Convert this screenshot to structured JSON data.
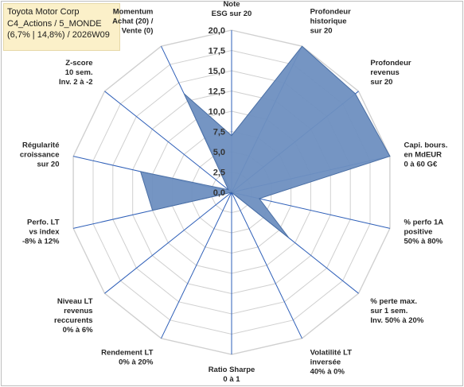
{
  "title_box": {
    "line1": "Toyota Motor Corp",
    "line2": "C4_Actions / 5_MONDE",
    "line3": "(6,7% | 14,8%) / 2026W09"
  },
  "chart_data": {
    "type": "radar",
    "rmin": 0,
    "rmax": 20,
    "tick_step": 2.5,
    "tick_labels": [
      "0,0",
      "2,5",
      "5,0",
      "7,5",
      "10,0",
      "12,5",
      "15,0",
      "17,5",
      "20,0"
    ],
    "axes": [
      [
        "Note",
        "ESG sur 20"
      ],
      [
        "Profondeur",
        "historique",
        "sur 20"
      ],
      [
        "Profondeur",
        "revenus",
        "sur 20"
      ],
      [
        "Capi. bours.",
        "en MdEUR",
        "0 à 60 G€"
      ],
      [
        "% perfo 1A",
        "positive",
        "50% à 80%"
      ],
      [
        "% perte max.",
        "sur 1 sem.",
        "Inv. 50% à 20%"
      ],
      [
        "Volatilité LT",
        "inversée",
        "40% à 0%"
      ],
      [
        "Ratio Sharpe",
        "0 à 1"
      ],
      [
        "Rendement LT",
        "0% à 20%"
      ],
      [
        "Niveau LT",
        "revenus",
        "reccurents",
        "0% à 6%"
      ],
      [
        "Perfo. LT",
        "vs index",
        "-8% à 12%"
      ],
      [
        "Régularité",
        "croissance",
        "sur 20"
      ],
      [
        "Z-score",
        "10 sem.",
        "Inv. 2 à -2"
      ],
      [
        "Momentum",
        "Achat (20) /",
        "Vente (0)"
      ]
    ],
    "values": [
      7,
      20,
      19.5,
      20,
      3.5,
      9,
      0,
      0,
      0,
      0,
      10,
      11.5,
      0.5,
      13.5
    ],
    "fill_color": "#6e8fc0",
    "stroke_color": "#4a6fa5",
    "grid_color": "#d0d0d0",
    "spoke_color": "#2e5fb8"
  }
}
